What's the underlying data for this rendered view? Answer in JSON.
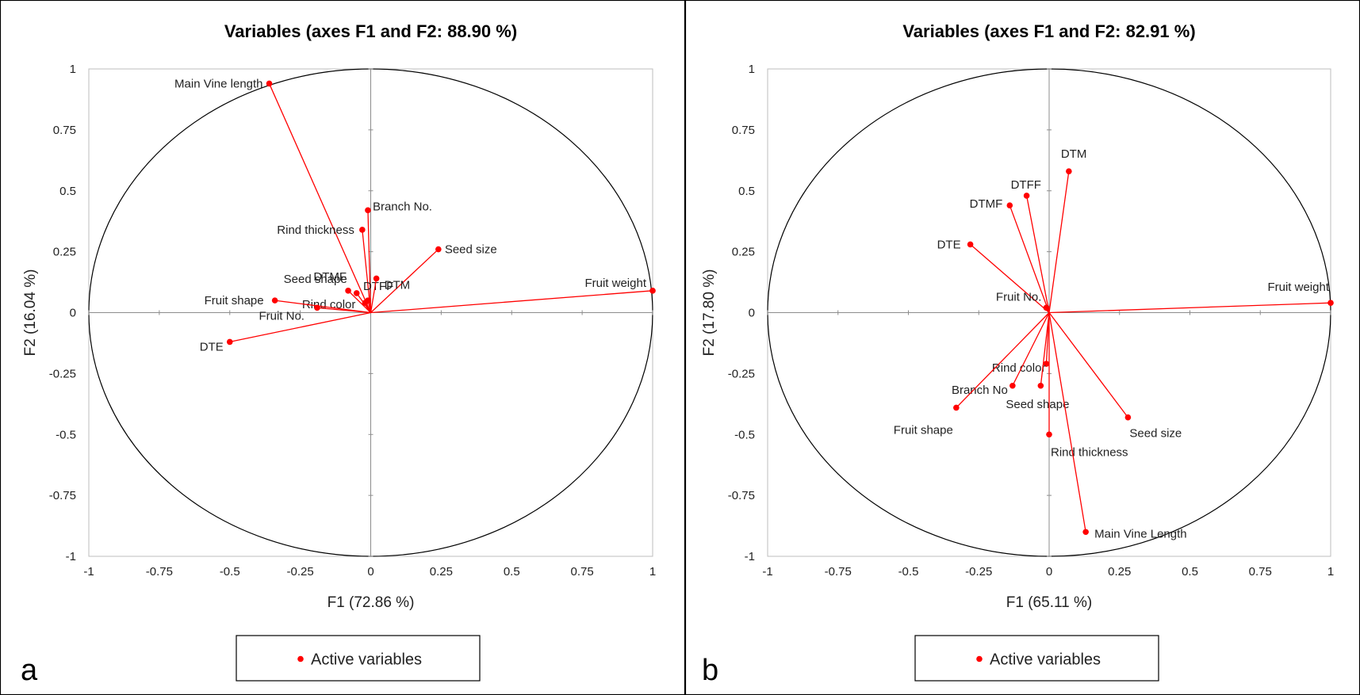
{
  "chart_data": [
    {
      "type": "scatter",
      "panel_label": "a",
      "title": "Variables (axes F1 and F2: 88.90 %)",
      "xlabel": "F1 (72.86 %)",
      "ylabel": "F2 (16.04 %)",
      "xlim": [
        -1,
        1
      ],
      "ylim": [
        -1,
        1
      ],
      "ticks": [
        "-1",
        "-0.75",
        "-0.5",
        "-0.25",
        "0",
        "0.25",
        "0.5",
        "0.75",
        "1"
      ],
      "legend": "Active variables",
      "series": [
        {
          "label": "Main Vine length",
          "x": -0.36,
          "y": 0.94
        },
        {
          "label": "Branch No.",
          "x": -0.01,
          "y": 0.42
        },
        {
          "label": "Rind thickness",
          "x": -0.03,
          "y": 0.34
        },
        {
          "label": "Seed size",
          "x": 0.24,
          "y": 0.26
        },
        {
          "label": "Fruit weight",
          "x": 1.0,
          "y": 0.09
        },
        {
          "label": "DTMF",
          "x": -0.08,
          "y": 0.09
        },
        {
          "label": "DTFF",
          "x": -0.01,
          "y": 0.05
        },
        {
          "label": "DTM",
          "x": 0.02,
          "y": 0.14
        },
        {
          "label": "Seed shape",
          "x": -0.05,
          "y": 0.08
        },
        {
          "label": "Rind color",
          "x": -0.02,
          "y": 0.04
        },
        {
          "label": "Fruit shape",
          "x": -0.34,
          "y": 0.05
        },
        {
          "label": "Fruit No.",
          "x": -0.19,
          "y": 0.02
        },
        {
          "label": "DTE",
          "x": -0.5,
          "y": -0.12
        }
      ]
    },
    {
      "type": "scatter",
      "panel_label": "b",
      "title": "Variables (axes F1 and F2: 82.91 %)",
      "xlabel": "F1 (65.11 %)",
      "ylabel": "F2 (17.80 %)",
      "xlim": [
        -1,
        1
      ],
      "ylim": [
        -1,
        1
      ],
      "ticks": [
        "-1",
        "-0.75",
        "-0.5",
        "-0.25",
        "0",
        "0.25",
        "0.5",
        "0.75",
        "1"
      ],
      "legend": "Active variables",
      "series": [
        {
          "label": "DTM",
          "x": 0.07,
          "y": 0.58
        },
        {
          "label": "DTFF",
          "x": -0.08,
          "y": 0.48
        },
        {
          "label": "DTMF",
          "x": -0.14,
          "y": 0.44
        },
        {
          "label": "DTE",
          "x": -0.28,
          "y": 0.28
        },
        {
          "label": "Fruit weight",
          "x": 1.0,
          "y": 0.04
        },
        {
          "label": "Fruit No.",
          "x": -0.01,
          "y": 0.02
        },
        {
          "label": "Rind color",
          "x": -0.01,
          "y": -0.21
        },
        {
          "label": "Branch No",
          "x": -0.13,
          "y": -0.3
        },
        {
          "label": "Seed shape",
          "x": -0.03,
          "y": -0.3
        },
        {
          "label": "Fruit shape",
          "x": -0.33,
          "y": -0.39
        },
        {
          "label": "Seed size",
          "x": 0.28,
          "y": -0.43
        },
        {
          "label": "Rind thickness",
          "x": 0.0,
          "y": -0.5
        },
        {
          "label": "Main Vine Length",
          "x": 0.13,
          "y": -0.9
        }
      ]
    }
  ]
}
